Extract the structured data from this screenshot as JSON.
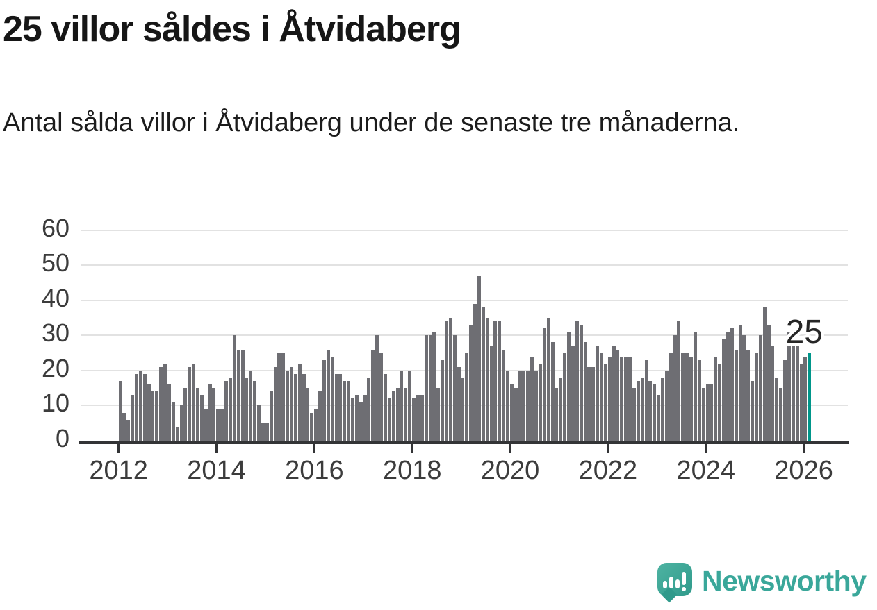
{
  "title": "25 villor såldes i Åtvidaberg",
  "subtitle": "Antal sålda villor i Åtvidaberg under de senaste tre månaderna.",
  "annotation": {
    "label": "25"
  },
  "branding": {
    "name": "Newsworthy",
    "logo_icon": "speech-bubble-bar-chart-icon"
  },
  "colors": {
    "bar": "#6e6e73",
    "highlight": "#00968a",
    "grid": "#e2e2e2",
    "axis": "#333436",
    "title_text": "#161616",
    "tick_label": "#3c3c3c",
    "brand_teal": "#3aa79a"
  },
  "chart_data": {
    "type": "bar",
    "title": "25 villor såldes i Åtvidaberg",
    "subtitle": "Antal sålda villor i Åtvidaberg under de senaste tre månaderna.",
    "frequency": "monthly",
    "x_start": "2012-01",
    "x_end": "2026-02",
    "x_tick_labels": [
      "2012",
      "2014",
      "2016",
      "2018",
      "2020",
      "2022",
      "2024",
      "2026"
    ],
    "y_ticks": [
      0,
      10,
      20,
      30,
      40,
      50,
      60
    ],
    "ylim": [
      0,
      60
    ],
    "grid": "horizontal",
    "values": [
      17,
      8,
      6,
      13,
      19,
      20,
      19,
      16,
      14,
      14,
      21,
      22,
      16,
      11,
      4,
      10,
      15,
      21,
      22,
      15,
      13,
      9,
      16,
      15,
      9,
      9,
      17,
      18,
      30,
      26,
      26,
      18,
      20,
      17,
      10,
      5,
      5,
      14,
      21,
      25,
      25,
      20,
      21,
      19,
      22,
      19,
      15,
      8,
      9,
      14,
      23,
      26,
      24,
      19,
      19,
      17,
      17,
      12,
      13,
      11,
      13,
      18,
      26,
      30,
      25,
      19,
      12,
      14,
      15,
      20,
      15,
      20,
      12,
      13,
      13,
      30,
      30,
      31,
      15,
      23,
      34,
      35,
      30,
      21,
      18,
      25,
      33,
      39,
      47,
      38,
      35,
      27,
      34,
      34,
      26,
      20,
      16,
      15,
      20,
      20,
      20,
      24,
      20,
      22,
      32,
      35,
      28,
      15,
      18,
      25,
      31,
      27,
      34,
      33,
      28,
      21,
      21,
      27,
      25,
      22,
      24,
      27,
      26,
      24,
      24,
      24,
      15,
      17,
      18,
      23,
      17,
      16,
      13,
      18,
      20,
      25,
      30,
      34,
      25,
      25,
      24,
      31,
      23,
      15,
      16,
      16,
      24,
      22,
      29,
      31,
      32,
      26,
      33,
      30,
      26,
      17,
      25,
      30,
      38,
      33,
      27,
      18,
      15,
      23,
      31,
      31,
      27,
      22,
      24,
      25
    ],
    "highlight": {
      "month": "2026-02",
      "index": 169,
      "value": 25,
      "color": "#00968a"
    }
  }
}
